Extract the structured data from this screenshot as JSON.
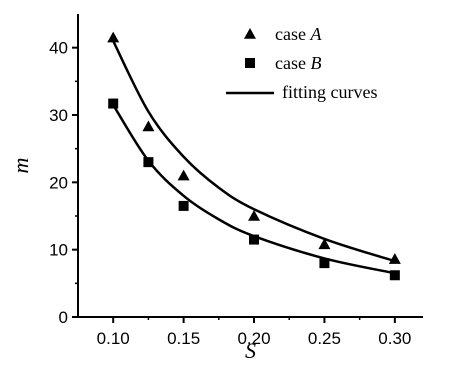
{
  "chart_data": {
    "type": "scatter",
    "title": "",
    "xlabel": "S",
    "ylabel": "m",
    "xlim": [
      0.075,
      0.32
    ],
    "ylim": [
      0,
      45
    ],
    "grid": false,
    "legend_position": "top-right",
    "xticks": [
      "0.10",
      "0.15",
      "0.20",
      "0.25",
      "0.30"
    ],
    "xtick_values": [
      0.1,
      0.15,
      0.2,
      0.25,
      0.3
    ],
    "yticks": [
      "0",
      "10",
      "20",
      "30",
      "40"
    ],
    "ytick_values": [
      0,
      10,
      20,
      30,
      40
    ],
    "series": [
      {
        "name": "case A",
        "marker": "triangle",
        "x": [
          0.1,
          0.125,
          0.15,
          0.2,
          0.25,
          0.3
        ],
        "y": [
          41.5,
          28.3,
          21.0,
          15.0,
          10.8,
          8.6
        ]
      },
      {
        "name": "case B",
        "marker": "square",
        "x": [
          0.1,
          0.125,
          0.15,
          0.2,
          0.25,
          0.3
        ],
        "y": [
          31.7,
          23.0,
          16.5,
          11.5,
          8.0,
          6.2
        ]
      }
    ],
    "fitting_curves": {
      "name": "fitting curves",
      "curves": [
        {
          "x": [
            0.1,
            0.125,
            0.15,
            0.175,
            0.2,
            0.25,
            0.3
          ],
          "y": [
            41.0,
            30.5,
            23.8,
            19.2,
            16.0,
            11.6,
            8.3
          ]
        },
        {
          "x": [
            0.1,
            0.125,
            0.15,
            0.175,
            0.2,
            0.25,
            0.3
          ],
          "y": [
            31.5,
            23.2,
            18.0,
            14.5,
            12.0,
            8.7,
            6.5
          ]
        }
      ]
    },
    "legend": [
      {
        "prefix": "case ",
        "suffix": "A",
        "marker": "triangle"
      },
      {
        "prefix": "case ",
        "suffix": "B",
        "marker": "square"
      },
      {
        "prefix": "fitting curves",
        "suffix": "",
        "marker": "line"
      }
    ],
    "colors": {
      "ink": "#000000",
      "background": "#ffffff"
    }
  }
}
